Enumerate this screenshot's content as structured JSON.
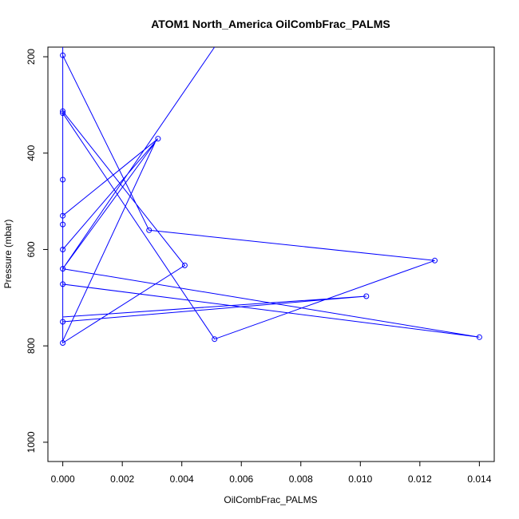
{
  "chart_data": {
    "type": "line",
    "title": "ATOM1 North_America OilCombFrac_PALMS",
    "xlabel": "OilCombFrac_PALMS",
    "ylabel": "Pressure (mbar)",
    "xlim": [
      -0.0005,
      0.0145
    ],
    "ylim": [
      1040,
      180
    ],
    "y_reversed": true,
    "x_ticks": [
      "0.000",
      "0.002",
      "0.004",
      "0.006",
      "0.008",
      "0.010",
      "0.012",
      "0.014"
    ],
    "x_tick_values": [
      0,
      0.002,
      0.004,
      0.006,
      0.008,
      0.01,
      0.012,
      0.014
    ],
    "y_ticks": [
      "200",
      "400",
      "600",
      "800",
      "1000"
    ],
    "y_tick_values": [
      200,
      400,
      600,
      800,
      1000
    ],
    "grid": false,
    "color": "#0000ff",
    "series": [
      {
        "points": [
          {
            "x": 0.0,
            "y": 750
          },
          {
            "x": 0.0102,
            "y": 697
          },
          {
            "x": 0.0,
            "y": 740
          },
          {
            "x": 0.0,
            "y": 180
          },
          {
            "x": 0.0,
            "y": 790
          },
          {
            "x": 0.0031,
            "y": 378
          },
          {
            "x": 0.0,
            "y": 640
          },
          {
            "x": 0.014,
            "y": 782
          },
          {
            "x": 0.0,
            "y": 672
          },
          {
            "x": 0.0,
            "y": 180
          },
          {
            "x": 0.0,
            "y": 317
          },
          {
            "x": 0.0051,
            "y": 786
          },
          {
            "x": 0.0125,
            "y": 623
          },
          {
            "x": 0.0029,
            "y": 560
          },
          {
            "x": 0.0,
            "y": 197
          },
          {
            "x": 0.0,
            "y": 794
          },
          {
            "x": 0.0041,
            "y": 633
          },
          {
            "x": 0.0,
            "y": 313
          },
          {
            "x": 0.0,
            "y": 180
          },
          {
            "x": 0.0,
            "y": 455
          },
          {
            "x": 0.0,
            "y": 180
          },
          {
            "x": 0.0,
            "y": 548
          },
          {
            "x": 0.0,
            "y": 180
          },
          {
            "x": 0.0,
            "y": 530
          },
          {
            "x": 0.0032,
            "y": 370
          },
          {
            "x": 0.0,
            "y": 600
          },
          {
            "x": 0.0,
            "y": 180
          },
          {
            "x": 0.0,
            "y": 640
          },
          {
            "x": 0.0051,
            "y": 180
          }
        ],
        "markers": [
          {
            "x": 0.0,
            "y": 197
          },
          {
            "x": 0.0,
            "y": 313
          },
          {
            "x": 0.0,
            "y": 317
          },
          {
            "x": 0.0,
            "y": 455
          },
          {
            "x": 0.0,
            "y": 530
          },
          {
            "x": 0.0,
            "y": 548
          },
          {
            "x": 0.0,
            "y": 600
          },
          {
            "x": 0.0,
            "y": 640
          },
          {
            "x": 0.0,
            "y": 672
          },
          {
            "x": 0.0,
            "y": 750
          },
          {
            "x": 0.0,
            "y": 794
          },
          {
            "x": 0.0032,
            "y": 370
          },
          {
            "x": 0.0029,
            "y": 560
          },
          {
            "x": 0.0041,
            "y": 633
          },
          {
            "x": 0.0051,
            "y": 786
          },
          {
            "x": 0.0102,
            "y": 697
          },
          {
            "x": 0.0125,
            "y": 623
          },
          {
            "x": 0.014,
            "y": 782
          }
        ]
      }
    ]
  }
}
